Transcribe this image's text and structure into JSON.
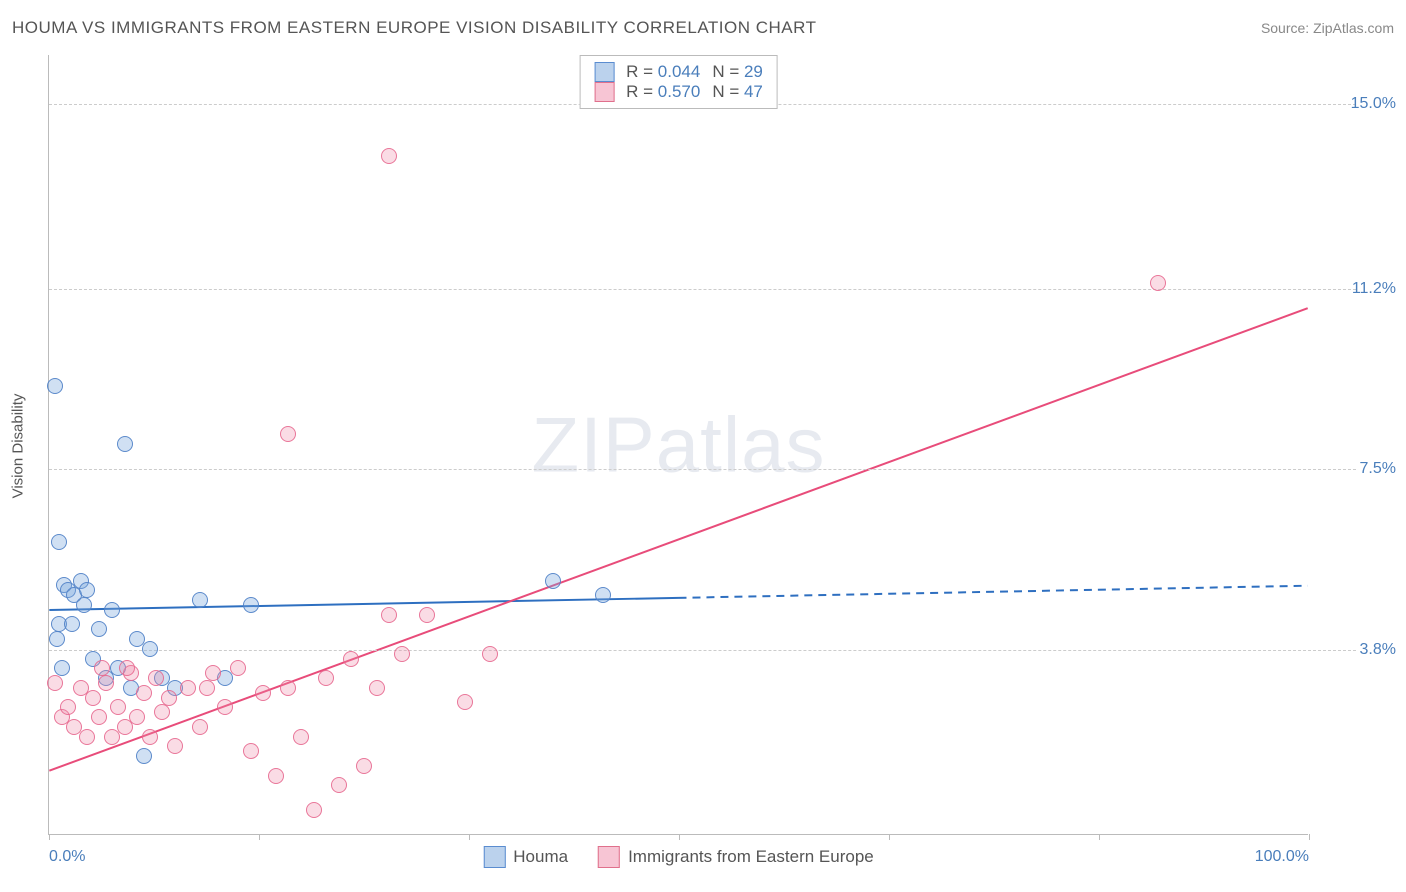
{
  "header": {
    "title": "HOUMA VS IMMIGRANTS FROM EASTERN EUROPE VISION DISABILITY CORRELATION CHART",
    "source_prefix": "Source: ",
    "source_name": "ZipAtlas.com"
  },
  "watermark": {
    "bold": "ZIP",
    "thin": "atlas"
  },
  "axes": {
    "y_title": "Vision Disability",
    "x_min": 0,
    "x_max": 100,
    "y_min": 0,
    "y_max": 16,
    "y_ticks": [
      {
        "v": 3.8,
        "label": "3.8%"
      },
      {
        "v": 7.5,
        "label": "7.5%"
      },
      {
        "v": 11.2,
        "label": "11.2%"
      },
      {
        "v": 15.0,
        "label": "15.0%"
      }
    ],
    "x_ticks_major": [
      0,
      16.7,
      33.3,
      50,
      66.7,
      83.3,
      100
    ],
    "x_labels": [
      {
        "v": 0,
        "label": "0.0%"
      },
      {
        "v": 100,
        "label": "100.0%"
      }
    ]
  },
  "chart": {
    "type": "scatter",
    "background_color": "#ffffff",
    "grid_color": "#cccccc",
    "series": [
      {
        "id": "a",
        "name": "Houma",
        "fill": "rgba(120,165,220,0.35)",
        "stroke": "#5a8cd0",
        "r_label": "R = ",
        "r_value": "0.044",
        "n_label": "N = ",
        "n_value": "29",
        "trend": {
          "x1": 0,
          "y1": 4.6,
          "x2": 100,
          "y2": 5.1,
          "solid_until_x": 50,
          "color": "#2e6fc0",
          "width": 2
        },
        "points": [
          {
            "x": 0.5,
            "y": 9.2
          },
          {
            "x": 0.8,
            "y": 4.3
          },
          {
            "x": 0.8,
            "y": 6.0
          },
          {
            "x": 1.0,
            "y": 3.4
          },
          {
            "x": 1.2,
            "y": 5.1
          },
          {
            "x": 1.5,
            "y": 5.0
          },
          {
            "x": 2.0,
            "y": 4.9
          },
          {
            "x": 2.5,
            "y": 5.2
          },
          {
            "x": 3.0,
            "y": 5.0
          },
          {
            "x": 3.5,
            "y": 3.6
          },
          {
            "x": 4.0,
            "y": 4.2
          },
          {
            "x": 4.5,
            "y": 3.2
          },
          {
            "x": 5.0,
            "y": 4.6
          },
          {
            "x": 5.5,
            "y": 3.4
          },
          {
            "x": 6.0,
            "y": 8.0
          },
          {
            "x": 6.5,
            "y": 3.0
          },
          {
            "x": 7.0,
            "y": 4.0
          },
          {
            "x": 7.5,
            "y": 1.6
          },
          {
            "x": 8.0,
            "y": 3.8
          },
          {
            "x": 9.0,
            "y": 3.2
          },
          {
            "x": 10.0,
            "y": 3.0
          },
          {
            "x": 12.0,
            "y": 4.8
          },
          {
            "x": 14.0,
            "y": 3.2
          },
          {
            "x": 16.0,
            "y": 4.7
          },
          {
            "x": 40.0,
            "y": 5.2
          },
          {
            "x": 44.0,
            "y": 4.9
          },
          {
            "x": 0.6,
            "y": 4.0
          },
          {
            "x": 1.8,
            "y": 4.3
          },
          {
            "x": 2.8,
            "y": 4.7
          }
        ]
      },
      {
        "id": "b",
        "name": "Immigrants from Eastern Europe",
        "fill": "rgba(240,140,170,0.30)",
        "stroke": "#e0708c",
        "r_label": "R = ",
        "r_value": "0.570",
        "n_label": "N = ",
        "n_value": "47",
        "trend": {
          "x1": 0,
          "y1": 1.3,
          "x2": 100,
          "y2": 10.8,
          "solid_until_x": 100,
          "color": "#e84c7a",
          "width": 2
        },
        "points": [
          {
            "x": 0.5,
            "y": 3.1
          },
          {
            "x": 1.0,
            "y": 2.4
          },
          {
            "x": 1.5,
            "y": 2.6
          },
          {
            "x": 2.0,
            "y": 2.2
          },
          {
            "x": 2.5,
            "y": 3.0
          },
          {
            "x": 3.0,
            "y": 2.0
          },
          {
            "x": 3.5,
            "y": 2.8
          },
          {
            "x": 4.0,
            "y": 2.4
          },
          {
            "x": 4.5,
            "y": 3.1
          },
          {
            "x": 5.0,
            "y": 2.0
          },
          {
            "x": 5.5,
            "y": 2.6
          },
          {
            "x": 6.0,
            "y": 2.2
          },
          {
            "x": 6.5,
            "y": 3.3
          },
          {
            "x": 7.0,
            "y": 2.4
          },
          {
            "x": 7.5,
            "y": 2.9
          },
          {
            "x": 8.0,
            "y": 2.0
          },
          {
            "x": 8.5,
            "y": 3.2
          },
          {
            "x": 9.0,
            "y": 2.5
          },
          {
            "x": 9.5,
            "y": 2.8
          },
          {
            "x": 10.0,
            "y": 1.8
          },
          {
            "x": 11.0,
            "y": 3.0
          },
          {
            "x": 12.0,
            "y": 2.2
          },
          {
            "x": 13.0,
            "y": 3.3
          },
          {
            "x": 14.0,
            "y": 2.6
          },
          {
            "x": 15.0,
            "y": 3.4
          },
          {
            "x": 16.0,
            "y": 1.7
          },
          {
            "x": 17.0,
            "y": 2.9
          },
          {
            "x": 18.0,
            "y": 1.2
          },
          {
            "x": 19.0,
            "y": 3.0
          },
          {
            "x": 20.0,
            "y": 2.0
          },
          {
            "x": 21.0,
            "y": 0.5
          },
          {
            "x": 22.0,
            "y": 3.2
          },
          {
            "x": 23.0,
            "y": 1.0
          },
          {
            "x": 24.0,
            "y": 3.6
          },
          {
            "x": 25.0,
            "y": 1.4
          },
          {
            "x": 26.0,
            "y": 3.0
          },
          {
            "x": 27.0,
            "y": 4.5
          },
          {
            "x": 28.0,
            "y": 3.7
          },
          {
            "x": 30.0,
            "y": 4.5
          },
          {
            "x": 33.0,
            "y": 2.7
          },
          {
            "x": 35.0,
            "y": 3.7
          },
          {
            "x": 19.0,
            "y": 8.2
          },
          {
            "x": 27.0,
            "y": 13.9
          },
          {
            "x": 88.0,
            "y": 11.3
          },
          {
            "x": 12.5,
            "y": 3.0
          },
          {
            "x": 6.2,
            "y": 3.4
          },
          {
            "x": 4.2,
            "y": 3.4
          }
        ]
      }
    ]
  }
}
